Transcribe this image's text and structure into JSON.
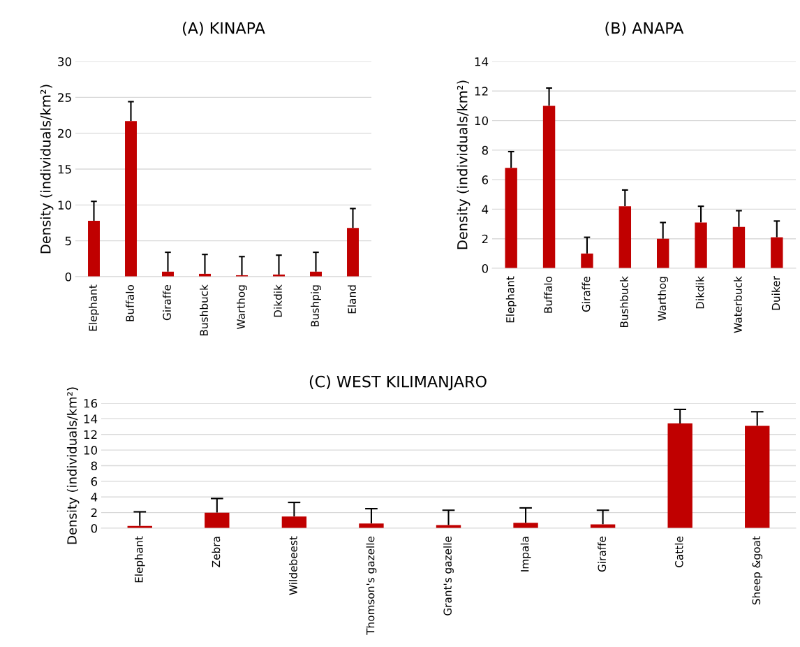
{
  "chart_data": [
    {
      "type": "bar",
      "title": "(A) KINAPA",
      "ylabel": "Density (individuals/km²)",
      "categories": [
        "Elephant",
        "Buffalo",
        "Giraffe",
        "Bushbuck",
        "Warthog",
        "Dikdik",
        "Bushpig",
        "Eland"
      ],
      "values": [
        7.8,
        21.7,
        0.7,
        0.4,
        0.2,
        0.3,
        0.7,
        6.8
      ],
      "color": "#c00000",
      "errors": [
        [
          7.8,
          10.5
        ],
        [
          21.7,
          24.4
        ],
        [
          0.7,
          3.4
        ],
        [
          0.4,
          3.1
        ],
        [
          0.2,
          2.8
        ],
        [
          0.3,
          3.0
        ],
        [
          0.7,
          3.4
        ],
        [
          6.8,
          9.5
        ]
      ],
      "ylim": [
        0,
        30
      ],
      "yticks": [
        0,
        5,
        10,
        15,
        20,
        25,
        30
      ],
      "grid": "y"
    },
    {
      "type": "bar",
      "title": "(B) ANAPA",
      "ylabel": "Density (individuals/km²)",
      "categories": [
        "Elephant",
        "Buffalo",
        "Giraffe",
        "Bushbuck",
        "Warthog",
        "Dikdik",
        "Waterbuck",
        "Duiker"
      ],
      "values": [
        6.8,
        11.0,
        1.0,
        4.2,
        2.0,
        3.1,
        2.8,
        2.1
      ],
      "color": "#c00000",
      "errors": [
        [
          6.8,
          7.9
        ],
        [
          11.0,
          12.2
        ],
        [
          1.0,
          2.1
        ],
        [
          4.2,
          5.3
        ],
        [
          2.0,
          3.1
        ],
        [
          3.1,
          4.2
        ],
        [
          2.8,
          3.9
        ],
        [
          2.1,
          3.2
        ]
      ],
      "ylim": [
        0,
        14
      ],
      "yticks": [
        0,
        2,
        4,
        6,
        8,
        10,
        12,
        14
      ],
      "grid": "y"
    },
    {
      "type": "bar",
      "title": "(C) WEST KILIMANJARO",
      "ylabel": "Density (individuals/km²)",
      "categories": [
        "Elephant",
        "Zebra",
        "Wildebeest",
        "Thomson's gazelle",
        "Grant's gazelle",
        "Impala",
        "Giraffe",
        "Cattle",
        "Sheep &goat"
      ],
      "values": [
        0.3,
        2.0,
        1.5,
        0.6,
        0.4,
        0.7,
        0.5,
        13.4,
        13.1
      ],
      "color": "#c00000",
      "errors": [
        [
          0.3,
          2.1
        ],
        [
          2.0,
          3.8
        ],
        [
          1.5,
          3.3
        ],
        [
          0.6,
          2.5
        ],
        [
          0.4,
          2.3
        ],
        [
          0.7,
          2.6
        ],
        [
          0.5,
          2.3
        ],
        [
          13.4,
          15.2
        ],
        [
          13.1,
          14.9
        ]
      ],
      "ylim": [
        0,
        16
      ],
      "yticks": [
        0,
        2,
        4,
        6,
        8,
        10,
        12,
        14,
        16
      ],
      "grid": "y"
    }
  ]
}
